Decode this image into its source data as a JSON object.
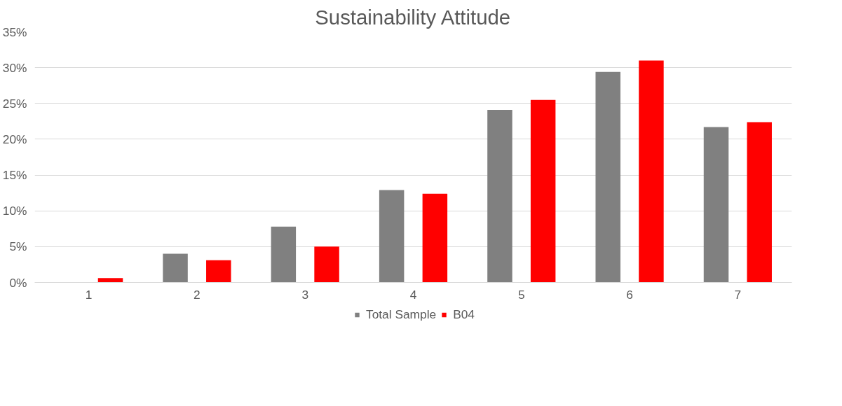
{
  "chart_data": {
    "type": "bar",
    "title": "Sustainability Attitude",
    "categories": [
      "1",
      "2",
      "3",
      "4",
      "5",
      "6",
      "7"
    ],
    "series": [
      {
        "name": "Total Sample",
        "color": "#808080",
        "values": [
          0,
          4.0,
          7.8,
          12.9,
          24.1,
          29.4,
          21.7
        ]
      },
      {
        "name": "B04",
        "color": "#ff0000",
        "values": [
          0.6,
          3.1,
          5.0,
          12.4,
          25.5,
          31.0,
          22.4
        ]
      }
    ],
    "ylim": [
      0,
      35
    ],
    "yticks": [
      {
        "value": 0,
        "label": "0%"
      },
      {
        "value": 5,
        "label": "5%"
      },
      {
        "value": 10,
        "label": "10%"
      },
      {
        "value": 15,
        "label": "15%"
      },
      {
        "value": 20,
        "label": "20%"
      },
      {
        "value": 25,
        "label": "25%"
      },
      {
        "value": 30,
        "label": "30%"
      },
      {
        "value": 35,
        "label": "35%"
      }
    ],
    "grid": "y",
    "legend": "bottom"
  }
}
